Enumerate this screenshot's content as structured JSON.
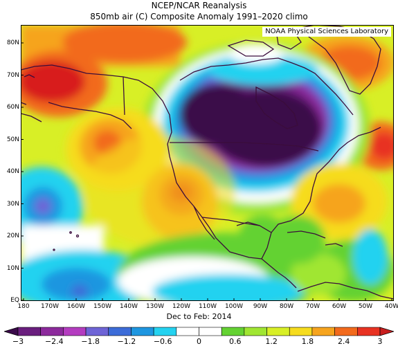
{
  "title_line1": "NCEP/NCAR Reanalysis",
  "title_line2": "850mb air (C) Composite Anomaly 1991–2020 climo",
  "credit": "NOAA Physical Sciences Laboratory",
  "period": "Dec to Feb: 2014",
  "lat_labels": [
    "80N",
    "70N",
    "60N",
    "50N",
    "40N",
    "30N",
    "20N",
    "10N",
    "EQ"
  ],
  "lon_labels": [
    "180",
    "170W",
    "160W",
    "150W",
    "140W",
    "130W",
    "120W",
    "110W",
    "100W",
    "90W",
    "80W",
    "70W",
    "60W",
    "50W",
    "40W"
  ],
  "colorbar": {
    "labels": [
      "−3",
      "−2.4",
      "−1.8",
      "−1.2",
      "−0.6",
      "0",
      "0.6",
      "1.2",
      "1.8",
      "2.4",
      "3"
    ],
    "colors": [
      "#3a0a4a",
      "#6a1e7e",
      "#8c2a9c",
      "#b43cc0",
      "#6e64d6",
      "#3c6cd8",
      "#1e96e0",
      "#24d2f0",
      "#ffffff",
      "#ffffff",
      "#64d232",
      "#a0e632",
      "#d8ef26",
      "#f6dc1e",
      "#f6a41e",
      "#f26a1c",
      "#e83222",
      "#c81e1e"
    ]
  },
  "palette": {
    "neg_max": "#3a0a4a",
    "purple": "#8c2a9c",
    "violet": "#6e64d6",
    "blue": "#1e96e0",
    "cyan": "#24d2f0",
    "zero": "#ffffff",
    "green": "#64d232",
    "lime": "#a0e632",
    "yellow": "#d8ef26",
    "gold": "#f6dc1e",
    "orange": "#f6a41e",
    "redorange": "#f26a1c",
    "red": "#e83222"
  }
}
